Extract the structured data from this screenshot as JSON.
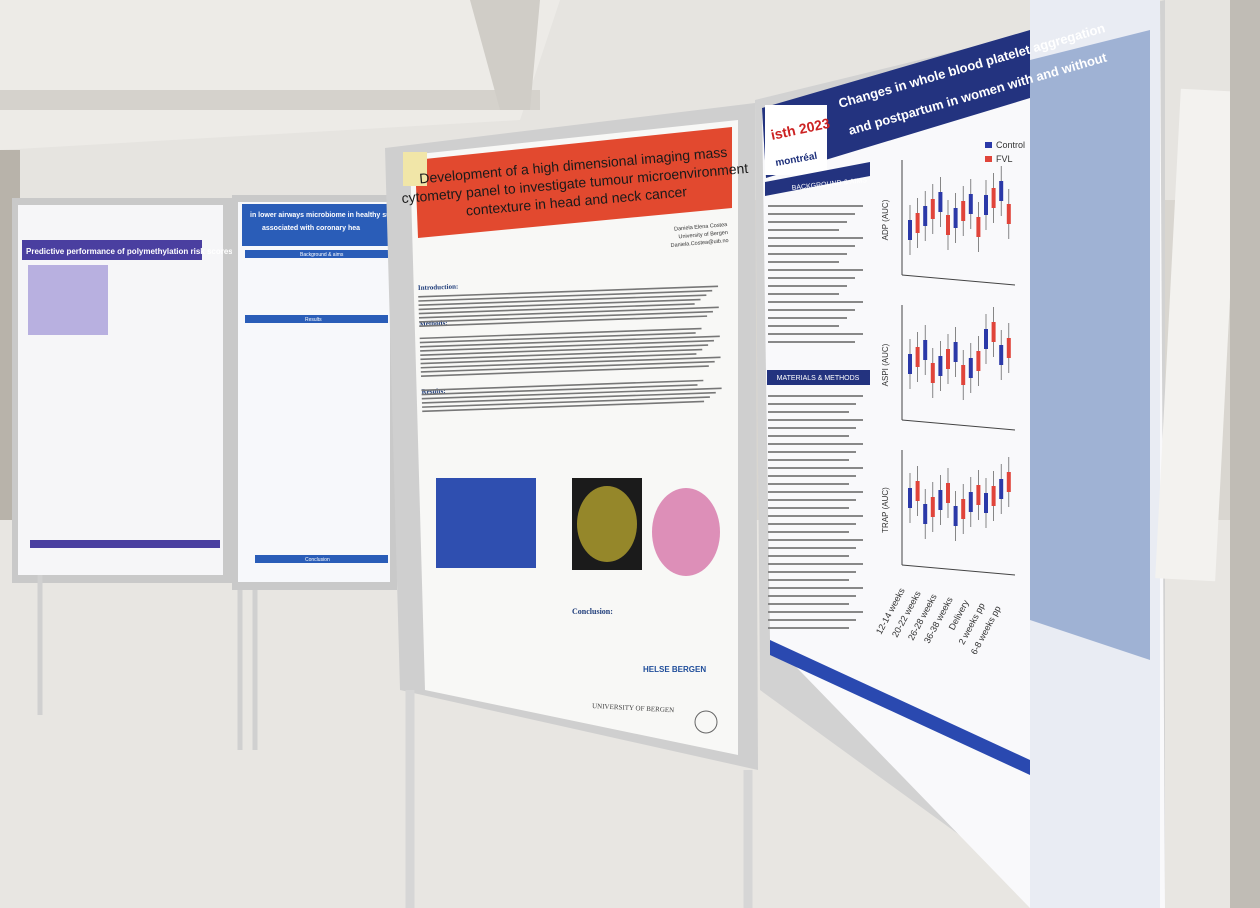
{
  "posters": [
    {
      "title": "Predictive performance of polymethylation risk scores for schizophrenia"
    },
    {
      "title_lines": [
        "in lower airways microbiome in healthy subj",
        "associated with coronary hea"
      ],
      "headings": [
        "Background & aims",
        "Results",
        "Conclusion"
      ]
    },
    {
      "title_lines": [
        "Development of a high dimensional imaging mass",
        "cytometry panel to investigate tumour microenvironment",
        "contexture in head and neck cancer"
      ],
      "author": "Daniela Elena Costea",
      "affiliation": "University of Bergen",
      "email": "Daniela.Costea@uib.no",
      "headings": [
        "Introduction:",
        "Methods:",
        "Results:",
        "Conclusion:"
      ],
      "logos": [
        "HELSE BERGEN",
        "UNIVERSITY OF BERGEN"
      ]
    },
    {
      "title_lines": [
        "Changes in whole blood platelet aggregation",
        "and postpartum in women with and without"
      ],
      "logo": [
        "isth 2023",
        "montréal"
      ],
      "headings": [
        "BACKGROUND & AIMS",
        "MATERIALS & METHODS"
      ],
      "legend": [
        "Control",
        "FVL"
      ],
      "panels": [
        "ADP (AUC)",
        "ASPI (AUC)",
        "TRAP (AUC)"
      ],
      "x_labels": [
        "12-14 weeks",
        "20-22 weeks",
        "26-28 weeks",
        "36-38 weeks",
        "Delivery",
        "2 weeks pp",
        "6-8 weeks pp"
      ]
    }
  ]
}
